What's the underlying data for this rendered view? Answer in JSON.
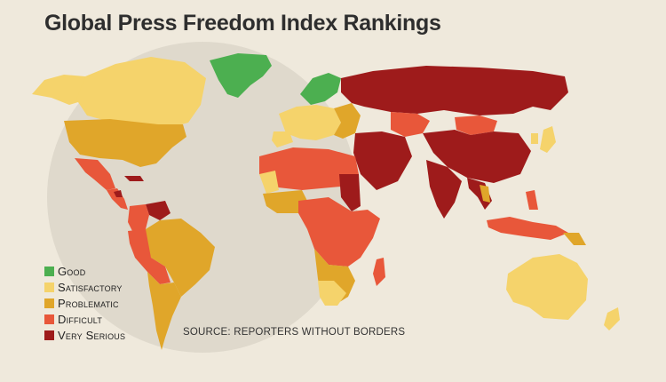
{
  "title": "Global Press Freedom Index Rankings",
  "legend": [
    {
      "label": "Good",
      "color": "#4caf50"
    },
    {
      "label": "Satisfactory",
      "color": "#f5d36b"
    },
    {
      "label": "Problematic",
      "color": "#e0a62a"
    },
    {
      "label": "Difficult",
      "color": "#e8573a"
    },
    {
      "label": "Very Serious",
      "color": "#9e1b1b"
    }
  ],
  "source": "SOURCE: REPORTERS WITHOUT BORDERS",
  "colors": {
    "background": "#efe9dc",
    "globe": "#dcd6c9",
    "good": "#4caf50",
    "satisfactory": "#f5d36b",
    "problematic": "#e0a62a",
    "difficult": "#e8573a",
    "very_serious": "#9e1b1b"
  }
}
